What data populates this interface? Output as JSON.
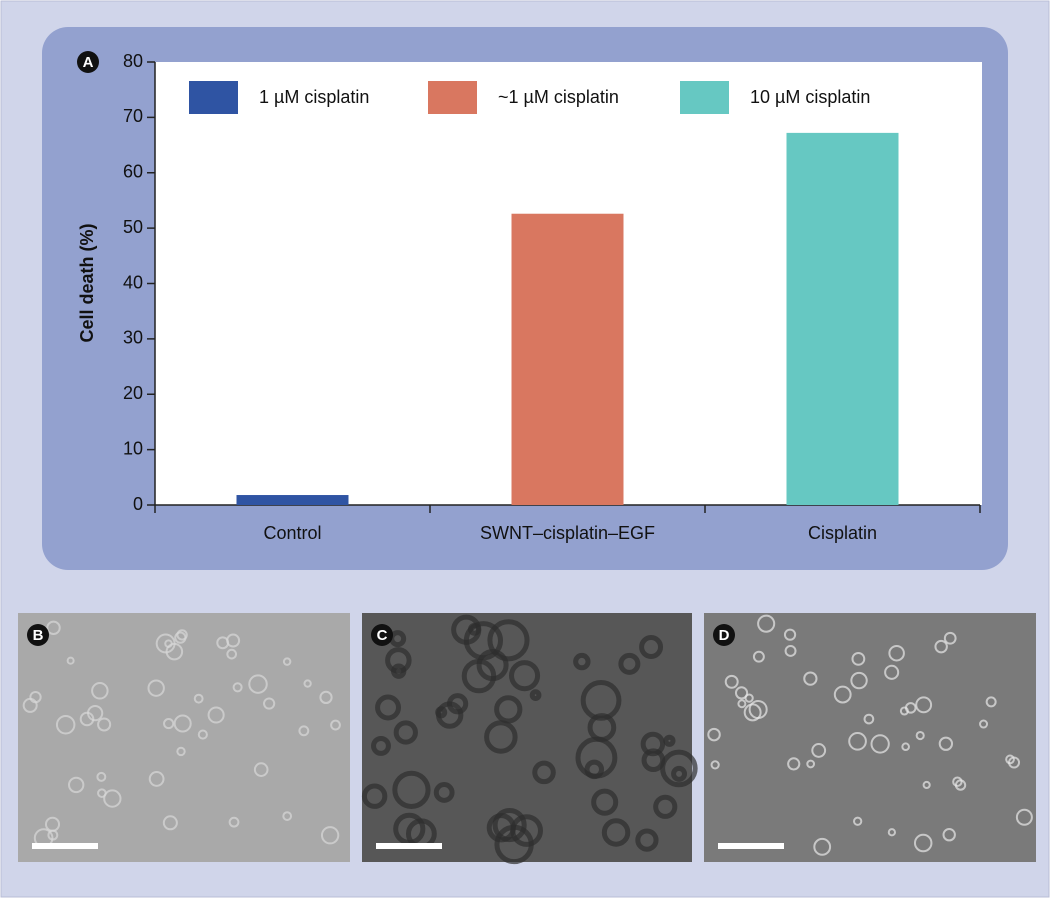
{
  "chart_data": {
    "type": "bar",
    "panel_label": "A",
    "ylabel": "Cell death (%)",
    "categories": [
      "Control",
      "SWNT–cisplatin–EGF",
      "Cisplatin"
    ],
    "series": [
      {
        "name": "1 µM cisplatin",
        "color": "#2f54a3",
        "values": [
          1.8,
          null,
          null
        ]
      },
      {
        "name": "~1 µM cisplatin",
        "color": "#d97760",
        "values": [
          null,
          52.6,
          null
        ]
      },
      {
        "name": "10 µM cisplatin",
        "color": "#66c8c2",
        "values": [
          null,
          null,
          67.2
        ]
      }
    ],
    "ylim": [
      0,
      80
    ],
    "yticks": [
      0,
      10,
      20,
      30,
      40,
      50,
      60,
      70,
      80
    ],
    "grid": false
  },
  "panels": [
    {
      "label": "B"
    },
    {
      "label": "C"
    },
    {
      "label": "D"
    }
  ]
}
